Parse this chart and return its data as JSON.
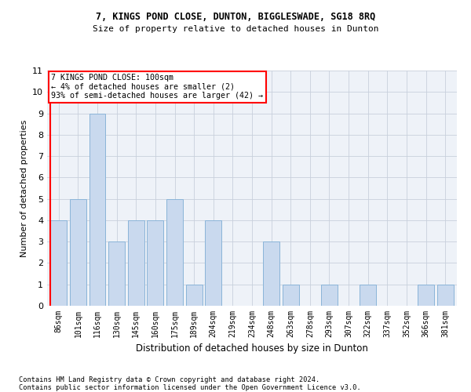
{
  "title1": "7, KINGS POND CLOSE, DUNTON, BIGGLESWADE, SG18 8RQ",
  "title2": "Size of property relative to detached houses in Dunton",
  "xlabel": "Distribution of detached houses by size in Dunton",
  "ylabel": "Number of detached properties",
  "categories": [
    "86sqm",
    "101sqm",
    "116sqm",
    "130sqm",
    "145sqm",
    "160sqm",
    "175sqm",
    "189sqm",
    "204sqm",
    "219sqm",
    "234sqm",
    "248sqm",
    "263sqm",
    "278sqm",
    "293sqm",
    "307sqm",
    "322sqm",
    "337sqm",
    "352sqm",
    "366sqm",
    "381sqm"
  ],
  "values": [
    4,
    5,
    9,
    3,
    4,
    4,
    5,
    1,
    4,
    0,
    0,
    3,
    1,
    0,
    1,
    0,
    1,
    0,
    0,
    1,
    1
  ],
  "bar_color": "#c9d9ee",
  "bar_edgecolor": "#8ab4d8",
  "grid_color": "#c8d0dc",
  "annotation_text": "7 KINGS POND CLOSE: 100sqm\n← 4% of detached houses are smaller (2)\n93% of semi-detached houses are larger (42) →",
  "annotation_box_color": "white",
  "annotation_box_edgecolor": "red",
  "vline_color": "red",
  "ylim": [
    0,
    11
  ],
  "yticks": [
    0,
    1,
    2,
    3,
    4,
    5,
    6,
    7,
    8,
    9,
    10,
    11
  ],
  "footer1": "Contains HM Land Registry data © Crown copyright and database right 2024.",
  "footer2": "Contains public sector information licensed under the Open Government Licence v3.0.",
  "bg_color": "#eef2f8"
}
